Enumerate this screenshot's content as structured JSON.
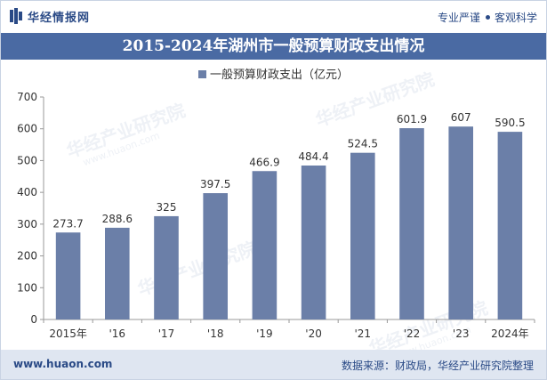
{
  "header": {
    "brand": "华经情报网",
    "slogan_left": "专业严谨",
    "slogan_right": "客观科学"
  },
  "title": "2015-2024年湖州市一般预算财政支出情况",
  "legend_label": "一般预算财政支出（亿元）",
  "watermarks": [
    "华经产业研究院",
    "www.huaon.com"
  ],
  "footer": {
    "website": "www.huaon.com",
    "source": "数据来源：财政局，华经产业研究院整理"
  },
  "colors": {
    "bar": "#6b7fa8",
    "title_band": "#4a6aa3",
    "brand": "#2a4a86",
    "footer_band": "#dfe6f1"
  },
  "chart_data": {
    "type": "bar",
    "categories": [
      "2015年",
      "'16",
      "'17",
      "'18",
      "'19",
      "'20",
      "'21",
      "'22",
      "'23",
      "2024年"
    ],
    "series": [
      {
        "name": "一般预算财政支出（亿元）",
        "values": [
          273.7,
          288.6,
          325,
          397.5,
          466.9,
          484.4,
          524.5,
          601.9,
          607,
          590.5
        ]
      }
    ],
    "data_labels": [
      "273.7",
      "288.6",
      "325",
      "397.5",
      "466.9",
      "484.4",
      "524.5",
      "601.9",
      "607",
      "590.5"
    ],
    "ylim": [
      0,
      700
    ],
    "yticks": [
      0,
      100,
      200,
      300,
      400,
      500,
      600,
      700
    ],
    "grid": false,
    "legend_position": "top-center"
  }
}
